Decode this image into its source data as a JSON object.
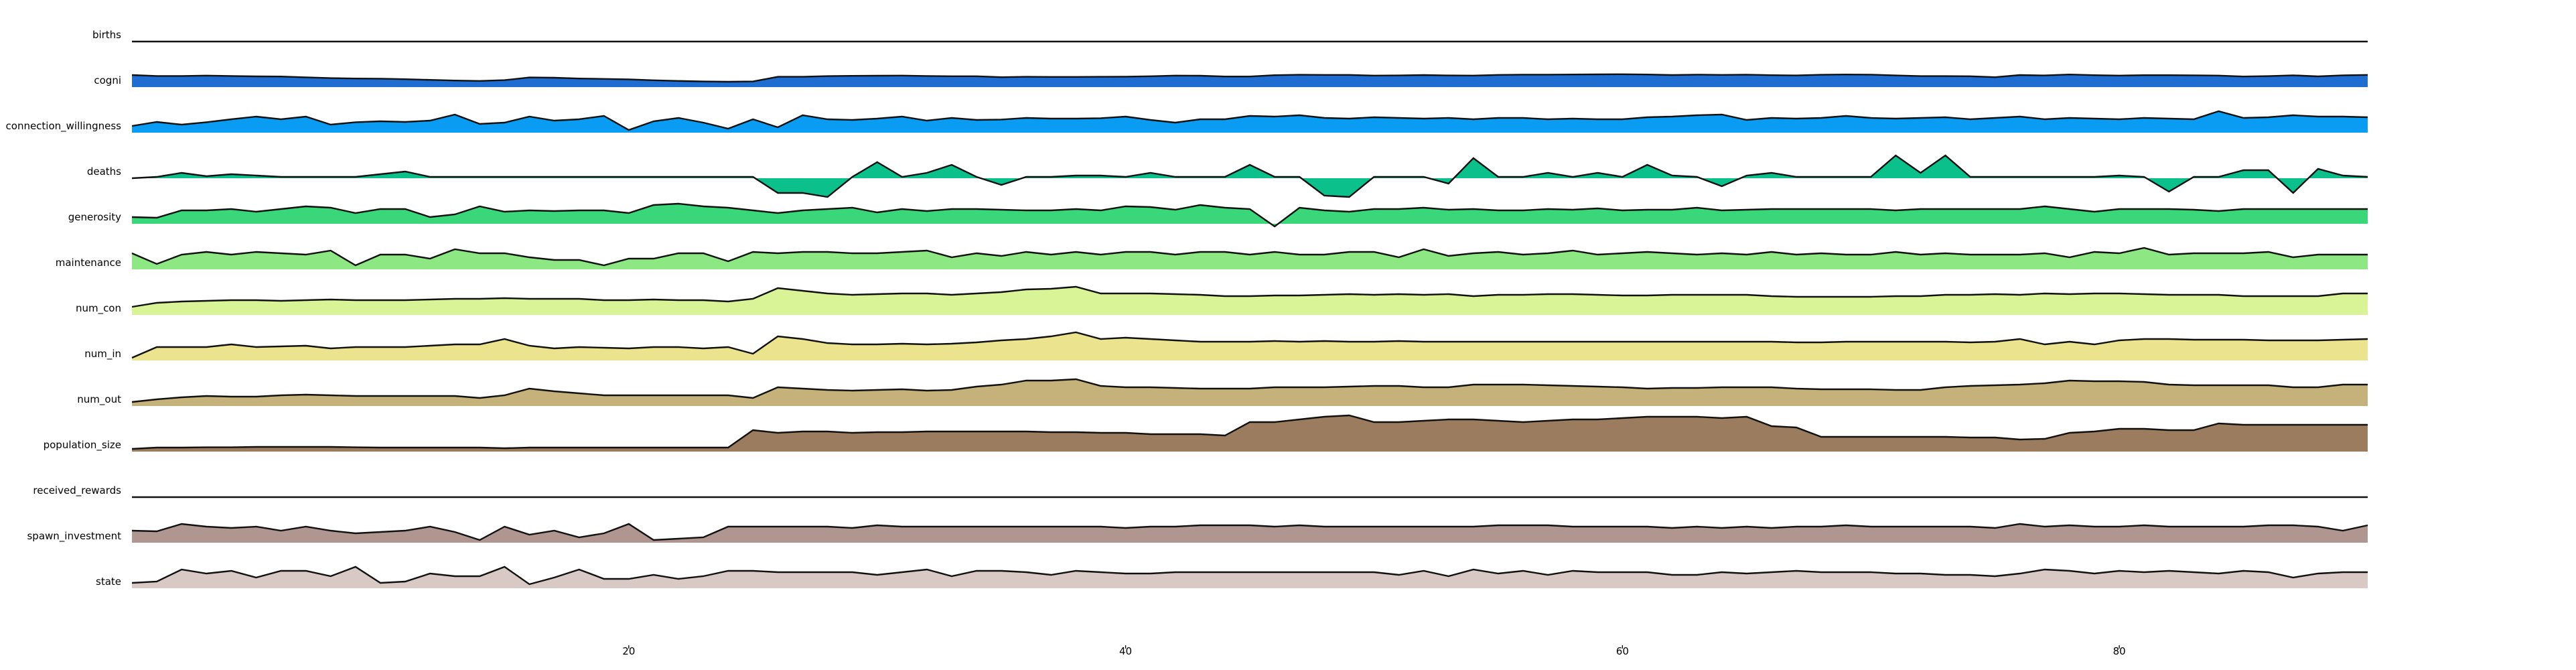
{
  "chart_data": {
    "type": "area",
    "style": "sparkline ridgeline (one filled strip per series, shared x axis, no y axes, no grid)",
    "x_start": 0,
    "x_end": 90,
    "xlim": [
      0,
      90
    ],
    "xticks": [
      20,
      40,
      60,
      80
    ],
    "x_tick_labels": [
      "20",
      "40",
      "60",
      "80"
    ],
    "grid": false,
    "legend": "none",
    "series": [
      {
        "name": "births",
        "color": "#ffffff",
        "values": [
          0
        ]
      },
      {
        "name": "cogni",
        "color": "#1f6dd1",
        "values": [
          0.9,
          0.83,
          0.83,
          0.86,
          0.83,
          0.8,
          0.79,
          0.73,
          0.67,
          0.64,
          0.63,
          0.59,
          0.54,
          0.49,
          0.46,
          0.52,
          0.72,
          0.7,
          0.64,
          0.61,
          0.58,
          0.51,
          0.46,
          0.42,
          0.4,
          0.42,
          0.77,
          0.77,
          0.82,
          0.84,
          0.85,
          0.86,
          0.83,
          0.81,
          0.81,
          0.74,
          0.77,
          0.76,
          0.76,
          0.77,
          0.78,
          0.81,
          0.86,
          0.85,
          0.79,
          0.79,
          0.89,
          0.92,
          0.91,
          0.91,
          0.86,
          0.87,
          0.9,
          0.87,
          0.86,
          0.91,
          0.93,
          0.93,
          0.94,
          0.95,
          0.96,
          0.94,
          0.9,
          0.93,
          0.91,
          0.93,
          0.89,
          0.87,
          0.92,
          0.94,
          0.93,
          0.87,
          0.82,
          0.82,
          0.81,
          0.74,
          0.9,
          0.87,
          0.94,
          0.89,
          0.86,
          0.89,
          0.89,
          0.88,
          0.86,
          0.79,
          0.82,
          0.88,
          0.8,
          0.88,
          0.91
        ]
      },
      {
        "name": "connection_willingness",
        "color": "#0a9cf2",
        "values": [
          0.5,
          0.8,
          0.6,
          0.78,
          1.0,
          1.2,
          1.0,
          1.2,
          0.6,
          0.78,
          0.85,
          0.8,
          0.9,
          1.35,
          0.65,
          0.75,
          1.2,
          0.9,
          1.0,
          1.25,
          0.2,
          0.85,
          1.1,
          0.75,
          0.3,
          1.0,
          0.4,
          1.3,
          1.0,
          0.95,
          1.05,
          1.2,
          0.9,
          1.1,
          0.95,
          0.98,
          1.1,
          1.05,
          1.05,
          1.08,
          1.2,
          0.95,
          0.75,
          1.0,
          1.0,
          1.25,
          1.2,
          1.3,
          1.1,
          1.05,
          1.15,
          1.1,
          1.05,
          1.1,
          1.0,
          1.1,
          1.1,
          1.0,
          1.05,
          1.0,
          1.0,
          1.15,
          1.2,
          1.3,
          1.35,
          0.95,
          1.1,
          1.05,
          1.1,
          1.25,
          1.1,
          1.05,
          1.1,
          1.15,
          1.0,
          1.1,
          1.2,
          1.0,
          1.1,
          1.05,
          1.0,
          1.1,
          1.05,
          1.0,
          1.6,
          1.1,
          1.15,
          1.3,
          1.2,
          1.2,
          1.15
        ]
      },
      {
        "name": "deaths",
        "color": "#0cc08b",
        "values": [
          0,
          0.1,
          0.4,
          0.15,
          0.3,
          0.2,
          0.1,
          0.1,
          0.1,
          0.1,
          0.3,
          0.5,
          0.1,
          0.1,
          0.1,
          0.1,
          0.1,
          0.1,
          0.1,
          0.1,
          0.1,
          0.1,
          0.1,
          0.1,
          0.1,
          0.1,
          -1.1,
          -1.1,
          -1.4,
          0.1,
          1.2,
          0.1,
          0.4,
          1.0,
          0.1,
          -0.5,
          0.1,
          0.1,
          0.2,
          0.2,
          0.1,
          0.4,
          0.1,
          0.1,
          0.1,
          1.0,
          0.1,
          0.1,
          -1.3,
          -1.4,
          0.1,
          0.1,
          0.1,
          -0.4,
          1.5,
          0.1,
          0.1,
          0.4,
          0.1,
          0.4,
          0.1,
          1.0,
          0.2,
          0.1,
          -0.6,
          0.2,
          0.4,
          0.1,
          0.1,
          0.1,
          0.1,
          1.7,
          0.4,
          1.7,
          0.1,
          0.1,
          0.1,
          0.1,
          0.1,
          0.1,
          0.2,
          0.1,
          -1.0,
          0.1,
          0.1,
          0.6,
          0.6,
          -1.1,
          0.7,
          0.2,
          0.1
        ]
      },
      {
        "name": "generosity",
        "color": "#3ad77a",
        "values": [
          0.5,
          0.45,
          1.0,
          1.0,
          1.1,
          0.9,
          1.1,
          1.3,
          1.2,
          0.8,
          1.1,
          1.1,
          0.5,
          0.7,
          1.3,
          0.9,
          1.0,
          0.95,
          1.0,
          1.0,
          0.8,
          1.4,
          1.5,
          1.3,
          1.2,
          1.0,
          0.8,
          1.0,
          1.1,
          1.2,
          0.85,
          1.1,
          0.95,
          1.1,
          1.1,
          1.05,
          1.0,
          1.0,
          1.1,
          1.0,
          1.3,
          1.25,
          1.05,
          1.4,
          1.2,
          1.1,
          -0.2,
          1.2,
          1.0,
          0.9,
          1.1,
          1.1,
          1.2,
          1.05,
          1.1,
          1.0,
          1.0,
          1.1,
          1.05,
          1.15,
          1.0,
          1.05,
          1.05,
          1.2,
          1.0,
          1.05,
          1.1,
          1.1,
          1.1,
          1.1,
          1.1,
          1.0,
          1.1,
          1.1,
          1.1,
          1.1,
          1.1,
          1.3,
          1.1,
          0.9,
          1.1,
          1.1,
          1.1,
          1.05,
          0.95,
          1.1,
          1.1,
          1.1,
          1.1,
          1.1,
          1.1
        ]
      },
      {
        "name": "maintenance",
        "color": "#8de883",
        "values": [
          1.2,
          0.4,
          1.1,
          1.3,
          1.1,
          1.3,
          1.2,
          1.1,
          1.4,
          0.3,
          1.1,
          1.1,
          0.8,
          1.5,
          1.2,
          1.2,
          0.9,
          0.7,
          0.7,
          0.3,
          0.8,
          0.8,
          1.2,
          1.2,
          0.6,
          1.3,
          1.2,
          1.3,
          1.3,
          1.2,
          1.2,
          1.3,
          1.4,
          0.9,
          1.2,
          1.0,
          1.3,
          1.1,
          1.3,
          1.1,
          1.3,
          1.3,
          1.1,
          1.3,
          1.3,
          1.1,
          1.3,
          1.1,
          1.1,
          1.3,
          1.3,
          0.9,
          1.5,
          1.0,
          1.2,
          1.3,
          1.1,
          1.2,
          1.4,
          1.1,
          1.2,
          1.3,
          1.2,
          1.1,
          1.2,
          1.1,
          1.3,
          1.1,
          1.2,
          1.1,
          1.1,
          1.3,
          1.1,
          1.2,
          1.1,
          1.1,
          1.1,
          1.2,
          0.9,
          1.3,
          1.2,
          1.6,
          1.1,
          1.2,
          1.2,
          1.2,
          1.3,
          0.9,
          1.1,
          1.1,
          1.1
        ]
      },
      {
        "name": "num_con",
        "color": "#d8f496",
        "values": [
          0.6,
          0.9,
          1.0,
          1.05,
          1.1,
          1.1,
          1.05,
          1.1,
          1.15,
          1.1,
          1.1,
          1.1,
          1.15,
          1.2,
          1.2,
          1.25,
          1.2,
          1.2,
          1.2,
          1.1,
          1.1,
          1.15,
          1.1,
          1.1,
          1.0,
          1.2,
          2.0,
          1.8,
          1.6,
          1.5,
          1.55,
          1.6,
          1.6,
          1.5,
          1.6,
          1.7,
          1.9,
          1.95,
          2.1,
          1.6,
          1.6,
          1.6,
          1.55,
          1.5,
          1.4,
          1.4,
          1.45,
          1.45,
          1.5,
          1.55,
          1.5,
          1.55,
          1.5,
          1.55,
          1.4,
          1.5,
          1.5,
          1.55,
          1.55,
          1.5,
          1.45,
          1.45,
          1.5,
          1.5,
          1.5,
          1.5,
          1.4,
          1.35,
          1.35,
          1.35,
          1.35,
          1.4,
          1.4,
          1.5,
          1.5,
          1.55,
          1.5,
          1.6,
          1.55,
          1.6,
          1.6,
          1.55,
          1.5,
          1.5,
          1.5,
          1.4,
          1.4,
          1.4,
          1.4,
          1.6,
          1.6
        ]
      },
      {
        "name": "num_in",
        "color": "#ebe38e",
        "values": [
          0.2,
          1.0,
          1.0,
          1.0,
          1.2,
          1.0,
          1.05,
          1.1,
          0.9,
          1.0,
          1.0,
          1.0,
          1.1,
          1.2,
          1.2,
          1.6,
          1.1,
          0.9,
          1.0,
          0.95,
          0.9,
          1.0,
          1.0,
          0.9,
          1.0,
          0.5,
          1.8,
          1.6,
          1.3,
          1.2,
          1.2,
          1.25,
          1.2,
          1.25,
          1.35,
          1.5,
          1.6,
          1.8,
          2.1,
          1.6,
          1.7,
          1.6,
          1.5,
          1.4,
          1.4,
          1.4,
          1.45,
          1.4,
          1.45,
          1.4,
          1.4,
          1.45,
          1.4,
          1.4,
          1.4,
          1.4,
          1.4,
          1.4,
          1.4,
          1.4,
          1.4,
          1.4,
          1.4,
          1.4,
          1.4,
          1.4,
          1.4,
          1.35,
          1.35,
          1.4,
          1.4,
          1.4,
          1.4,
          1.4,
          1.35,
          1.4,
          1.6,
          1.2,
          1.4,
          1.2,
          1.5,
          1.6,
          1.6,
          1.55,
          1.55,
          1.55,
          1.5,
          1.5,
          1.5,
          1.55,
          1.6
        ]
      },
      {
        "name": "num_out",
        "color": "#c4b27a",
        "values": [
          0.3,
          0.5,
          0.65,
          0.75,
          0.7,
          0.7,
          0.8,
          0.85,
          0.8,
          0.75,
          0.75,
          0.75,
          0.75,
          0.75,
          0.6,
          0.8,
          1.3,
          1.1,
          0.95,
          0.8,
          0.8,
          0.8,
          0.8,
          0.8,
          0.8,
          0.6,
          1.4,
          1.3,
          1.2,
          1.15,
          1.2,
          1.25,
          1.15,
          1.2,
          1.45,
          1.6,
          1.9,
          1.9,
          2.0,
          1.5,
          1.4,
          1.4,
          1.35,
          1.3,
          1.3,
          1.3,
          1.4,
          1.4,
          1.4,
          1.45,
          1.5,
          1.5,
          1.4,
          1.4,
          1.6,
          1.6,
          1.6,
          1.55,
          1.5,
          1.45,
          1.4,
          1.3,
          1.35,
          1.35,
          1.4,
          1.4,
          1.4,
          1.3,
          1.25,
          1.25,
          1.25,
          1.2,
          1.2,
          1.4,
          1.5,
          1.55,
          1.6,
          1.7,
          1.9,
          1.85,
          1.85,
          1.8,
          1.6,
          1.55,
          1.55,
          1.55,
          1.55,
          1.4,
          1.4,
          1.6,
          1.6
        ]
      },
      {
        "name": "population_size",
        "color": "#9b7c5f",
        "values": [
          0.2,
          0.3,
          0.3,
          0.32,
          0.32,
          0.35,
          0.35,
          0.35,
          0.35,
          0.32,
          0.3,
          0.3,
          0.3,
          0.3,
          0.3,
          0.25,
          0.3,
          0.3,
          0.3,
          0.3,
          0.3,
          0.3,
          0.3,
          0.3,
          0.3,
          1.6,
          1.4,
          1.5,
          1.5,
          1.4,
          1.45,
          1.45,
          1.5,
          1.5,
          1.5,
          1.5,
          1.5,
          1.45,
          1.45,
          1.4,
          1.4,
          1.3,
          1.3,
          1.3,
          1.2,
          2.2,
          2.2,
          2.4,
          2.6,
          2.7,
          2.2,
          2.2,
          2.3,
          2.4,
          2.4,
          2.3,
          2.2,
          2.3,
          2.4,
          2.4,
          2.5,
          2.6,
          2.6,
          2.6,
          2.5,
          2.6,
          1.9,
          1.8,
          1.1,
          1.1,
          1.1,
          1.1,
          1.1,
          1.1,
          1.05,
          1.05,
          0.9,
          0.95,
          1.4,
          1.5,
          1.7,
          1.7,
          1.6,
          1.6,
          2.1,
          2.0,
          2.0,
          2.0,
          2.0,
          2.0,
          2.0
        ]
      },
      {
        "name": "received_rewards",
        "color": "#ffffff",
        "values": [
          0
        ]
      },
      {
        "name": "spawn_investment",
        "color": "#b09690",
        "values": [
          0.9,
          0.85,
          1.4,
          1.2,
          1.1,
          1.2,
          0.9,
          1.2,
          0.9,
          0.7,
          0.8,
          0.9,
          1.2,
          0.8,
          0.2,
          1.2,
          0.6,
          0.9,
          0.4,
          0.7,
          1.4,
          0.2,
          0.3,
          0.4,
          1.2,
          1.2,
          1.2,
          1.2,
          1.2,
          1.1,
          1.3,
          1.2,
          1.2,
          1.2,
          1.2,
          1.2,
          1.2,
          1.2,
          1.2,
          1.2,
          1.1,
          1.2,
          1.2,
          1.3,
          1.3,
          1.3,
          1.2,
          1.3,
          1.2,
          1.2,
          1.2,
          1.2,
          1.2,
          1.2,
          1.2,
          1.3,
          1.3,
          1.3,
          1.2,
          1.2,
          1.2,
          1.2,
          1.1,
          1.2,
          1.1,
          1.2,
          1.1,
          1.2,
          1.2,
          1.3,
          1.2,
          1.2,
          1.2,
          1.2,
          1.2,
          1.1,
          1.4,
          1.2,
          1.3,
          1.2,
          1.2,
          1.3,
          1.2,
          1.2,
          1.2,
          1.2,
          1.3,
          1.3,
          1.2,
          0.9,
          1.3
        ]
      },
      {
        "name": "state",
        "color": "#d9c9c5",
        "values": [
          0.4,
          0.5,
          1.4,
          1.1,
          1.3,
          0.8,
          1.3,
          1.3,
          0.9,
          1.6,
          0.4,
          0.5,
          1.1,
          0.9,
          0.9,
          1.6,
          0.3,
          0.8,
          1.4,
          0.7,
          0.7,
          1.0,
          0.7,
          0.9,
          1.3,
          1.3,
          1.2,
          1.2,
          1.2,
          1.2,
          1.0,
          1.2,
          1.4,
          0.9,
          1.3,
          1.3,
          1.2,
          1.0,
          1.3,
          1.2,
          1.1,
          1.1,
          1.2,
          1.2,
          1.2,
          1.2,
          1.2,
          1.2,
          1.2,
          1.2,
          1.2,
          1.0,
          1.3,
          0.9,
          1.4,
          1.1,
          1.3,
          1.0,
          1.3,
          1.2,
          1.2,
          1.2,
          1.0,
          1.0,
          1.2,
          1.1,
          1.2,
          1.3,
          1.2,
          1.2,
          1.2,
          1.1,
          1.1,
          1.0,
          1.0,
          0.9,
          1.1,
          1.4,
          1.3,
          1.1,
          1.3,
          1.2,
          1.3,
          1.2,
          1.1,
          1.3,
          1.2,
          0.8,
          1.1,
          1.2,
          1.2
        ]
      }
    ]
  }
}
